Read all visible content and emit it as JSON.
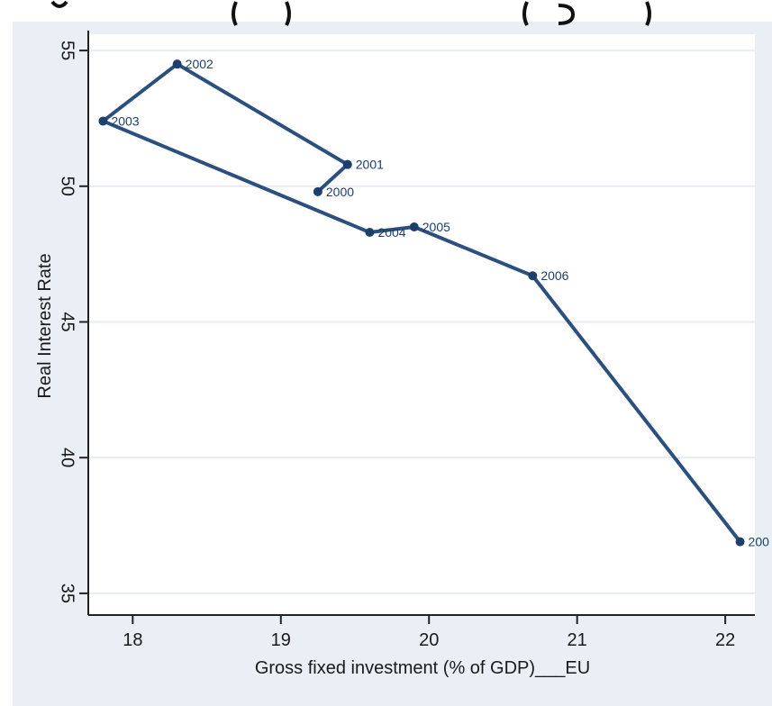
{
  "chart_data": {
    "type": "line",
    "title": "",
    "xlabel": "Gross fixed investment (% of GDP)___EU",
    "ylabel": "Real Interest Rate",
    "xlim": [
      17.7,
      22.2
    ],
    "ylim": [
      34.2,
      55.6
    ],
    "x_ticks": [
      18,
      19,
      20,
      21,
      22
    ],
    "y_ticks": [
      35,
      40,
      45,
      50,
      55
    ],
    "grid": true,
    "series": [
      {
        "points": [
          {
            "x": 22.1,
            "y": 36.9,
            "label": "200"
          },
          {
            "x": 20.7,
            "y": 46.7,
            "label": "2006"
          },
          {
            "x": 19.9,
            "y": 48.5,
            "label": "2005"
          },
          {
            "x": 19.6,
            "y": 48.3,
            "label": "2004"
          },
          {
            "x": 17.8,
            "y": 52.4,
            "label": "2003"
          },
          {
            "x": 18.3,
            "y": 54.5,
            "label": "2002"
          },
          {
            "x": 19.45,
            "y": 50.8,
            "label": "2001"
          },
          {
            "x": 19.25,
            "y": 49.8,
            "label": "2000"
          }
        ]
      }
    ],
    "colors": {
      "line": "#2b4f7e",
      "marker": "#1d3f6b",
      "grid": "#ffffff",
      "plot_bg": "#ffffff",
      "outer_bg": "#e9eff4"
    }
  }
}
